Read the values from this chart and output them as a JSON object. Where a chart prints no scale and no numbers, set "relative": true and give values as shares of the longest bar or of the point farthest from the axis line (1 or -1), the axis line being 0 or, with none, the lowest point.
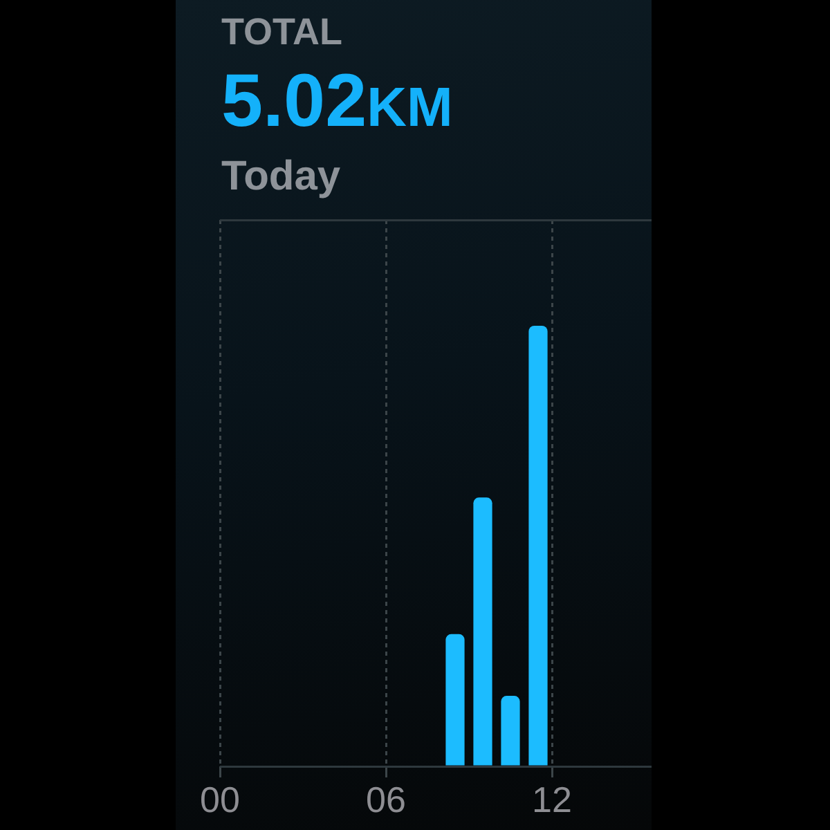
{
  "chart_data": {
    "type": "bar",
    "title": "TOTAL",
    "annotations": [
      "5.02KM"
    ],
    "subtitle": "Today",
    "x": [
      8.5,
      9.5,
      10.5,
      11.5
    ],
    "values": [
      0.3,
      0.61,
      0.16,
      1
    ],
    "color": "#1cbcff",
    "relative": true,
    "xlim": [
      0,
      15.6
    ],
    "xticks": [
      {
        "value": 0,
        "label": "00"
      },
      {
        "value": 6,
        "label": "06"
      },
      {
        "value": 12,
        "label": "12"
      }
    ],
    "grid": true
  }
}
